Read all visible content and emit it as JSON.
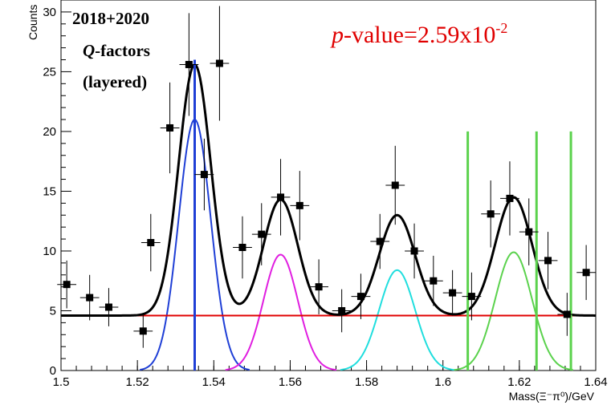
{
  "chart_data": {
    "type": "scatter",
    "xlabel": "Mass(Ξ⁻π⁰)/GeV",
    "ylabel": "Counts",
    "xlim": [
      1.5,
      1.64
    ],
    "ylim": [
      0,
      31
    ],
    "xticks": [
      1.5,
      1.52,
      1.54,
      1.56,
      1.58,
      1.6,
      1.62,
      1.64
    ],
    "xtick_labels": [
      "1.5",
      "1.52",
      "1.54",
      "1.56",
      "1.58",
      "1.6",
      "1.62",
      "1.64"
    ],
    "yticks": [
      0,
      5,
      10,
      15,
      20,
      25,
      30
    ],
    "ytick_labels": [
      "0",
      "5",
      "10",
      "15",
      "20",
      "25",
      "30"
    ],
    "annotation": {
      "line1": "2018+2020",
      "line2_italic": "Q",
      "line2_rest": "-factors",
      "line3": "(layered)"
    },
    "pvalue": {
      "p": "p",
      "text": "-value=2.59x10",
      "exp": "-2"
    },
    "points": [
      {
        "x": 1.5015,
        "y": 7.2,
        "err": 2.0
      },
      {
        "x": 1.5075,
        "y": 6.1,
        "err": 1.9
      },
      {
        "x": 1.5125,
        "y": 5.3,
        "err": 1.6
      },
      {
        "x": 1.5215,
        "y": 3.3,
        "err": 1.4
      },
      {
        "x": 1.5235,
        "y": 10.7,
        "err": 2.4
      },
      {
        "x": 1.5285,
        "y": 20.3,
        "err": 3.8
      },
      {
        "x": 1.5335,
        "y": 25.6,
        "err": 4.3
      },
      {
        "x": 1.5375,
        "y": 16.4,
        "err": 3.0
      },
      {
        "x": 1.5415,
        "y": 25.7,
        "err": 4.8
      },
      {
        "x": 1.5475,
        "y": 10.3,
        "err": 2.6
      },
      {
        "x": 1.5525,
        "y": 11.4,
        "err": 2.6
      },
      {
        "x": 1.5575,
        "y": 14.5,
        "err": 3.2
      },
      {
        "x": 1.5625,
        "y": 13.8,
        "err": 2.9
      },
      {
        "x": 1.5675,
        "y": 7.0,
        "err": 2.3
      },
      {
        "x": 1.5735,
        "y": 5.0,
        "err": 1.8
      },
      {
        "x": 1.5785,
        "y": 6.2,
        "err": 1.9
      },
      {
        "x": 1.5835,
        "y": 10.8,
        "err": 2.3
      },
      {
        "x": 1.5875,
        "y": 15.5,
        "err": 3.3
      },
      {
        "x": 1.5925,
        "y": 10.0,
        "err": 2.3
      },
      {
        "x": 1.5975,
        "y": 7.5,
        "err": 2.1
      },
      {
        "x": 1.6025,
        "y": 6.5,
        "err": 1.9
      },
      {
        "x": 1.6075,
        "y": 6.2,
        "err": 2.0
      },
      {
        "x": 1.6125,
        "y": 13.1,
        "err": 2.8
      },
      {
        "x": 1.6175,
        "y": 14.4,
        "err": 3.1
      },
      {
        "x": 1.6225,
        "y": 11.6,
        "err": 2.8
      },
      {
        "x": 1.6275,
        "y": 9.2,
        "err": 2.4
      },
      {
        "x": 1.6325,
        "y": 4.7,
        "err": 1.8
      },
      {
        "x": 1.6375,
        "y": 8.2,
        "err": 2.3
      }
    ],
    "x_error": 0.0025,
    "background_level": 4.6,
    "peaks": [
      {
        "mean": 1.535,
        "sigma": 0.0042,
        "amp": 21.0,
        "color": "#1f3fd6"
      },
      {
        "mean": 1.5575,
        "sigma": 0.0045,
        "amp": 9.7,
        "color": "#e01ee0"
      },
      {
        "mean": 1.588,
        "sigma": 0.0047,
        "amp": 8.4,
        "color": "#20dede"
      },
      {
        "mean": 1.6185,
        "sigma": 0.0048,
        "amp": 9.9,
        "color": "#5bd24d"
      }
    ],
    "vertical_lines": [
      {
        "x": 1.535,
        "color": "#1f3fd6"
      },
      {
        "x": 1.6065,
        "color": "#5bd24d"
      },
      {
        "x": 1.6245,
        "color": "#5bd24d"
      },
      {
        "x": 1.6335,
        "color": "#5bd24d"
      }
    ],
    "colors": {
      "background_line": "#e00000",
      "total_fit": "#000000",
      "points": "#000000"
    }
  }
}
